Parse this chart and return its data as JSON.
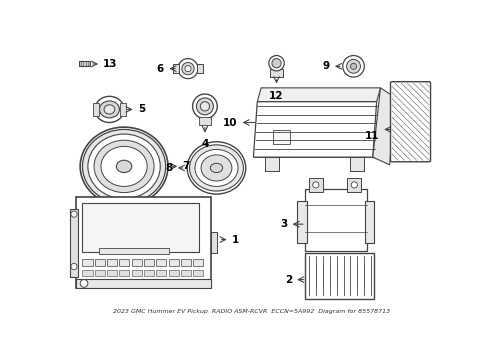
{
  "title": "2023 GMC Hummer EV Pickup  RADIO ASM-RCVR  ECCN=5A992  Diagram for 85578713",
  "bg_color": "#ffffff",
  "line_color": "#444444",
  "text_color": "#000000",
  "figsize": [
    4.9,
    3.6
  ],
  "dpi": 100
}
